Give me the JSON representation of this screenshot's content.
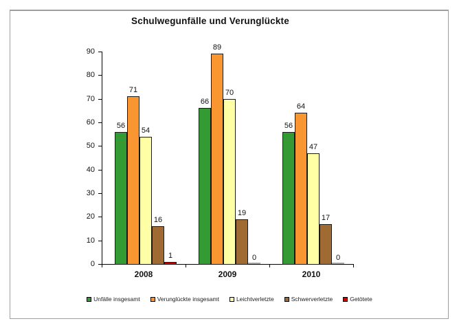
{
  "chart_data": {
    "type": "bar",
    "title": "Schulwegunfälle und Verunglückte",
    "xlabel": "",
    "ylabel": "",
    "categories": [
      "2008",
      "2009",
      "2010"
    ],
    "series": [
      {
        "name": "Unfälle insgesamt",
        "color": "#349a33",
        "values": [
          56,
          66,
          56
        ]
      },
      {
        "name": "Verunglückte insgesamt",
        "color": "#fa9632",
        "values": [
          71,
          89,
          64
        ]
      },
      {
        "name": "Leichtverletzte",
        "color": "#ffffa6",
        "values": [
          54,
          70,
          47
        ]
      },
      {
        "name": "Schwerverletzte",
        "color": "#a06b32",
        "values": [
          16,
          19,
          17
        ]
      },
      {
        "name": "Getötete",
        "color": "#cc0000",
        "values": [
          1,
          0,
          0
        ]
      }
    ],
    "ylim": [
      0,
      90
    ],
    "y_tick_step": 10,
    "y_tick_labels": [
      "0",
      "10",
      "20",
      "30",
      "40",
      "50",
      "60",
      "70",
      "80",
      "90"
    ],
    "grid": false,
    "legend_position": "bottom",
    "data_labels": true,
    "bar_border_color": "#1a1a1a",
    "axis_color": "#000000"
  }
}
